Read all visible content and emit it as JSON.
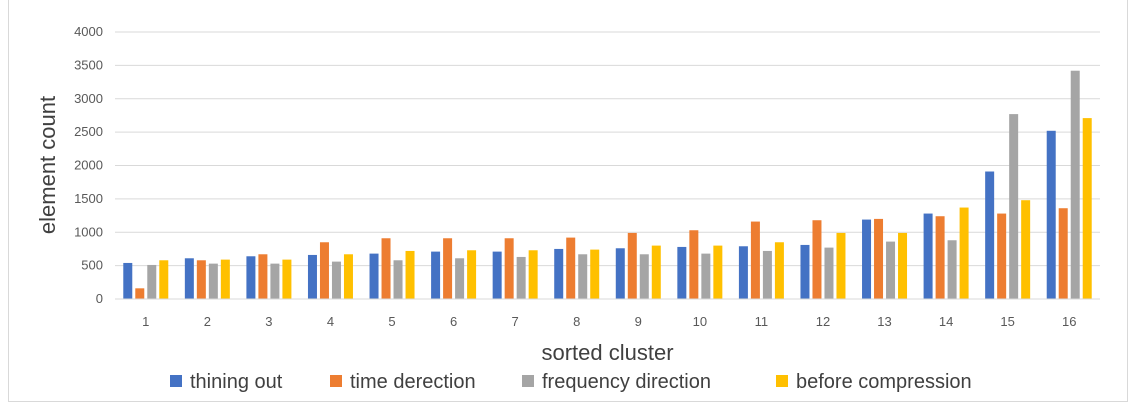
{
  "chart_data": {
    "type": "bar",
    "title": "",
    "xlabel": "sorted cluster",
    "ylabel": "element count",
    "ylim": [
      0,
      4000
    ],
    "yticks": [
      0,
      500,
      1000,
      1500,
      2000,
      2500,
      3000,
      3500,
      4000
    ],
    "categories": [
      "1",
      "2",
      "3",
      "4",
      "5",
      "6",
      "7",
      "8",
      "9",
      "10",
      "11",
      "12",
      "13",
      "14",
      "15",
      "16"
    ],
    "grid": true,
    "legend_position": "bottom",
    "series": [
      {
        "name": "thining out",
        "color": "#4472C4",
        "values": [
          540,
          610,
          640,
          660,
          680,
          710,
          710,
          750,
          760,
          780,
          790,
          810,
          1190,
          1280,
          1910,
          2520
        ]
      },
      {
        "name": "time derection",
        "color": "#ED7D31",
        "values": [
          160,
          580,
          670,
          850,
          910,
          910,
          910,
          920,
          990,
          1030,
          1160,
          1180,
          1200,
          1240,
          1280,
          1360
        ]
      },
      {
        "name": "frequency direction",
        "color": "#A5A5A5",
        "values": [
          510,
          530,
          530,
          560,
          580,
          610,
          630,
          670,
          670,
          680,
          720,
          770,
          860,
          880,
          2770,
          3420
        ]
      },
      {
        "name": "before compression",
        "color": "#FFC000",
        "values": [
          580,
          590,
          590,
          670,
          720,
          730,
          730,
          740,
          800,
          800,
          850,
          990,
          990,
          1370,
          1480,
          2710
        ]
      }
    ]
  }
}
